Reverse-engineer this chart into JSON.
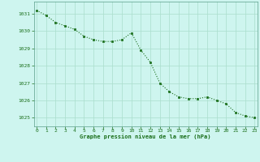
{
  "hours": [
    0,
    1,
    2,
    3,
    4,
    5,
    6,
    7,
    8,
    9,
    10,
    11,
    12,
    13,
    14,
    15,
    16,
    17,
    18,
    19,
    20,
    21,
    22,
    23
  ],
  "pressure": [
    1031.2,
    1030.9,
    1030.5,
    1030.3,
    1030.1,
    1029.7,
    1029.5,
    1029.4,
    1029.4,
    1029.5,
    1029.9,
    1028.9,
    1028.2,
    1027.0,
    1026.5,
    1026.2,
    1026.1,
    1026.1,
    1026.2,
    1026.0,
    1025.8,
    1025.3,
    1025.1,
    1025.0
  ],
  "line_color": "#1a6e1a",
  "marker": "s",
  "marker_size": 2.0,
  "bg_color": "#cef5ef",
  "grid_color": "#aaddcc",
  "xlabel": "Graphe pression niveau de la mer (hPa)",
  "xlabel_color": "#1a6e1a",
  "tick_color": "#1a6e1a",
  "ylim": [
    1024.5,
    1031.7
  ],
  "yticks": [
    1025,
    1026,
    1027,
    1028,
    1029,
    1030,
    1031
  ],
  "xlim": [
    -0.3,
    23.3
  ],
  "xticks": [
    0,
    1,
    2,
    3,
    4,
    5,
    6,
    7,
    8,
    9,
    10,
    11,
    12,
    13,
    14,
    15,
    16,
    17,
    18,
    19,
    20,
    21,
    22,
    23
  ]
}
